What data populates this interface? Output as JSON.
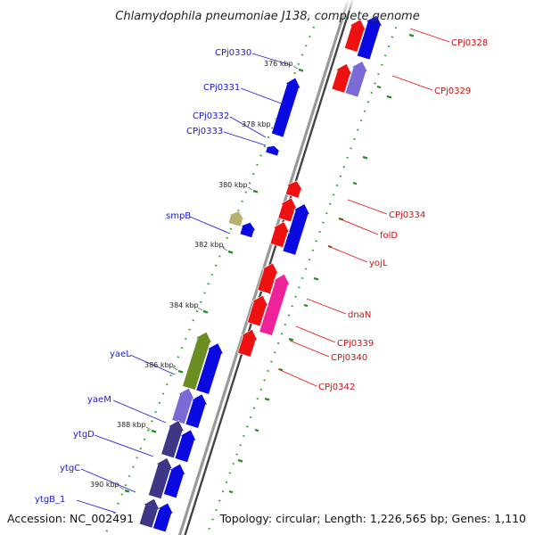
{
  "title": "Chlamydophila pneumoniae J138, complete genome",
  "footer": {
    "accession": "Accession: NC_002491",
    "summary": "Topology: circular; Length: 1,226,565 bp; Genes: 1,110"
  },
  "colors": {
    "background": "#ffffff",
    "backbone_outer": "#999999",
    "backbone_inner": "#444444",
    "tick": "#2a8a2a",
    "ruler_dot": "#2aa82a",
    "label_line_left": "#2222dd",
    "label_line_right": "#ee1111",
    "label_text_left": "#1a1acc",
    "label_text_right": "#cc1111",
    "gene_blue": "#0a0ae0",
    "gene_red": "#ee1111",
    "gene_pink": "#ee2299",
    "gene_green": "#6b8e23",
    "gene_lavender": "#7a6ad6",
    "gene_navy": "#3d3785",
    "gene_khaki": "#b8b070"
  },
  "kbp_labels": [
    "376 kbp",
    "378 kbp",
    "380 kbp",
    "382 kbp",
    "384 kbp",
    "386 kbp",
    "388 kbp",
    "390 kbp"
  ],
  "gene_labels_left": [
    "CPj0330",
    "CPj0331",
    "CPj0332",
    "CPj0333",
    "smpB",
    "yaeL",
    "yaeM",
    "ytgD",
    "ytgC",
    "ytgB_1"
  ],
  "gene_labels_right": [
    "CPj0328",
    "CPj0329",
    "CPj0334",
    "folD",
    "yojL",
    "dnaN",
    "CPj0339",
    "CPj0340",
    "CPj0342"
  ]
}
